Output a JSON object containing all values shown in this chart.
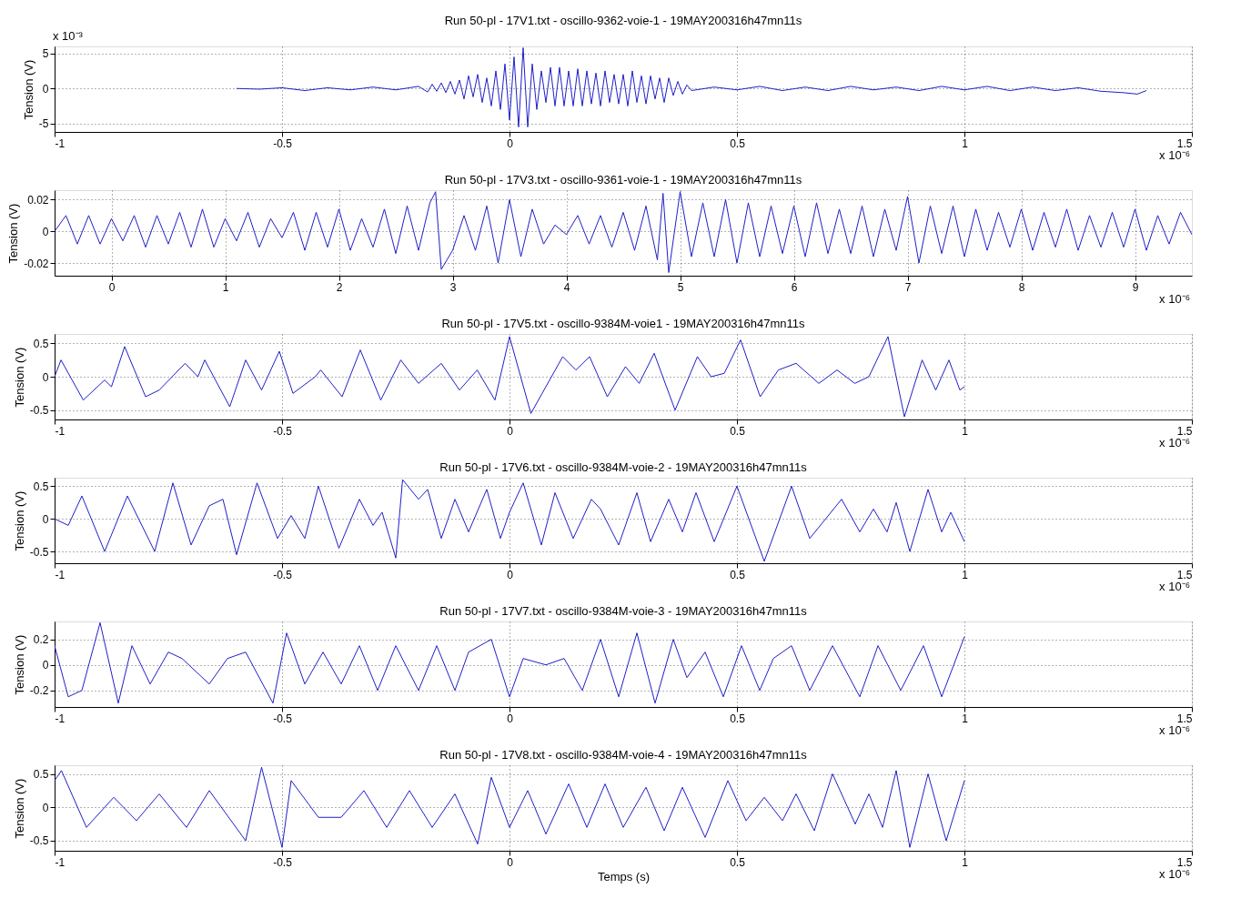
{
  "chart_data": [
    {
      "type": "line",
      "title": "Run 50-pl - 17V1.txt  - oscillo-9362-voie-1 - 19MAY200316h47mn11s",
      "ylabel": "Tension (V)",
      "annotations": [
        "x 10⁻³",
        "x 10⁻⁶"
      ],
      "xlim": [
        -1,
        1.5
      ],
      "xticks": [
        -1,
        -0.5,
        0,
        0.5,
        1,
        1.5
      ],
      "ylim": [
        -6.2,
        6
      ],
      "yticks": [
        -5,
        0,
        5
      ],
      "grid": true,
      "legend": false,
      "x": [
        -0.6,
        -0.55,
        -0.5,
        -0.45,
        -0.4,
        -0.35,
        -0.3,
        -0.25,
        -0.2,
        -0.18,
        -0.17,
        -0.16,
        -0.15,
        -0.14,
        -0.13,
        -0.12,
        -0.11,
        -0.1,
        -0.09,
        -0.08,
        -0.07,
        -0.06,
        -0.05,
        -0.04,
        -0.03,
        -0.02,
        -0.01,
        0,
        0.01,
        0.02,
        0.03,
        0.04,
        0.05,
        0.06,
        0.07,
        0.08,
        0.09,
        0.1,
        0.11,
        0.12,
        0.13,
        0.14,
        0.15,
        0.16,
        0.17,
        0.18,
        0.19,
        0.2,
        0.21,
        0.22,
        0.23,
        0.24,
        0.25,
        0.26,
        0.27,
        0.28,
        0.29,
        0.3,
        0.31,
        0.32,
        0.33,
        0.34,
        0.35,
        0.36,
        0.37,
        0.38,
        0.39,
        0.4,
        0.45,
        0.5,
        0.55,
        0.6,
        0.65,
        0.7,
        0.75,
        0.8,
        0.85,
        0.9,
        0.95,
        1.0,
        1.05,
        1.1,
        1.15,
        1.2,
        1.25,
        1.3,
        1.35,
        1.38,
        1.4
      ],
      "series": [
        {
          "color": "#1f1fc8",
          "values": [
            0,
            -0.1,
            0.1,
            -0.3,
            0.1,
            -0.2,
            0.2,
            -0.2,
            0.3,
            -0.5,
            0.6,
            -0.4,
            0.8,
            -0.6,
            1.0,
            -0.8,
            1.2,
            -1.5,
            1.8,
            -1.2,
            2.0,
            -2.0,
            1.5,
            -2.5,
            2.5,
            -3.0,
            3.5,
            -4.5,
            4.5,
            -5.5,
            5.8,
            -5.5,
            3.5,
            -3.0,
            2.5,
            -2.0,
            3.0,
            -2.5,
            3.0,
            -2.5,
            2.5,
            -2.5,
            2.8,
            -2.5,
            2.5,
            -2.2,
            2.2,
            -2.5,
            2.5,
            -2.0,
            2.0,
            -2.2,
            2.0,
            -2.5,
            2.5,
            -2.0,
            1.8,
            -2.2,
            1.8,
            -1.5,
            1.5,
            -2.0,
            1.5,
            -1.0,
            1.0,
            -0.8,
            0.5,
            -0.3,
            0.2,
            -0.2,
            0.3,
            -0.3,
            0.2,
            -0.3,
            0.3,
            -0.2,
            0.2,
            -0.3,
            0.3,
            -0.2,
            0.3,
            -0.3,
            0.2,
            -0.3,
            0.1,
            -0.4,
            -0.6,
            -0.8,
            -0.3
          ]
        }
      ]
    },
    {
      "type": "line",
      "title": "Run 50-pl - 17V3.txt  - oscillo-9361-voie-1 - 19MAY200316h47mn11s",
      "ylabel": "Tension (V)",
      "annotations": [
        "x 10⁻⁶"
      ],
      "xlim": [
        -0.5,
        9.5
      ],
      "xticks": [
        0,
        1,
        2,
        3,
        4,
        5,
        6,
        7,
        8,
        9
      ],
      "ylim": [
        -0.028,
        0.026
      ],
      "yticks": [
        -0.02,
        0,
        0.02
      ],
      "grid": true,
      "legend": false,
      "x": [
        -0.5,
        -0.4,
        -0.3,
        -0.2,
        -0.1,
        0,
        0.1,
        0.2,
        0.3,
        0.4,
        0.5,
        0.6,
        0.7,
        0.8,
        0.9,
        1.0,
        1.1,
        1.2,
        1.3,
        1.4,
        1.5,
        1.6,
        1.7,
        1.8,
        1.9,
        2.0,
        2.1,
        2.2,
        2.3,
        2.4,
        2.5,
        2.6,
        2.7,
        2.8,
        2.85,
        2.9,
        3.0,
        3.1,
        3.2,
        3.3,
        3.4,
        3.5,
        3.6,
        3.7,
        3.8,
        3.9,
        4.0,
        4.1,
        4.2,
        4.3,
        4.4,
        4.5,
        4.6,
        4.7,
        4.8,
        4.85,
        4.9,
        5.0,
        5.1,
        5.2,
        5.3,
        5.4,
        5.5,
        5.6,
        5.7,
        5.8,
        5.9,
        6.0,
        6.1,
        6.2,
        6.3,
        6.4,
        6.5,
        6.6,
        6.7,
        6.8,
        6.9,
        7.0,
        7.1,
        7.2,
        7.3,
        7.4,
        7.5,
        7.6,
        7.7,
        7.8,
        7.9,
        8.0,
        8.1,
        8.2,
        8.3,
        8.4,
        8.5,
        8.6,
        8.7,
        8.8,
        8.9,
        9.0,
        9.1,
        9.2,
        9.3,
        9.4,
        9.5
      ],
      "series": [
        {
          "color": "#1f1fc8",
          "values": [
            0,
            0.01,
            -0.008,
            0.01,
            -0.008,
            0.008,
            -0.006,
            0.01,
            -0.01,
            0.01,
            -0.008,
            0.012,
            -0.01,
            0.014,
            -0.01,
            0.008,
            -0.006,
            0.012,
            -0.01,
            0.008,
            -0.004,
            0.012,
            -0.012,
            0.012,
            -0.01,
            0.014,
            -0.012,
            0.008,
            -0.01,
            0.014,
            -0.014,
            0.016,
            -0.012,
            0.018,
            0.025,
            -0.024,
            -0.012,
            0.01,
            -0.012,
            0.016,
            -0.02,
            0.02,
            -0.016,
            0.014,
            -0.008,
            0.004,
            -0.002,
            0.01,
            -0.008,
            0.01,
            -0.01,
            0.012,
            -0.012,
            0.016,
            -0.018,
            0.024,
            -0.026,
            0.025,
            -0.016,
            0.018,
            -0.016,
            0.02,
            -0.02,
            0.018,
            -0.016,
            0.016,
            -0.014,
            0.016,
            -0.016,
            0.018,
            -0.014,
            0.014,
            -0.014,
            0.016,
            -0.016,
            0.014,
            -0.012,
            0.022,
            -0.02,
            0.016,
            -0.014,
            0.016,
            -0.016,
            0.014,
            -0.012,
            0.012,
            -0.01,
            0.014,
            -0.012,
            0.012,
            -0.01,
            0.014,
            -0.012,
            0.01,
            -0.01,
            0.012,
            -0.01,
            0.014,
            -0.012,
            0.01,
            -0.008,
            0.012,
            -0.002
          ]
        }
      ]
    },
    {
      "type": "line",
      "title": "Run 50-pl - 17V5.txt  - oscillo-9384M-voie1 - 19MAY200316h47mn11s",
      "ylabel": "Tension (V)",
      "annotations": [
        "x 10⁻⁶"
      ],
      "xlim": [
        -1,
        1.5
      ],
      "xticks": [
        -1,
        -0.5,
        0,
        0.5,
        1,
        1.5
      ],
      "ylim": [
        -0.64,
        0.64
      ],
      "yticks": [
        -0.5,
        0,
        0.5
      ],
      "grid": true,
      "legend": false,
      "x": [
        -1,
        -0.986,
        -0.937,
        -0.89,
        -0.875,
        -0.846,
        -0.8,
        -0.77,
        -0.713,
        -0.685,
        -0.67,
        -0.615,
        -0.58,
        -0.545,
        -0.506,
        -0.476,
        -0.427,
        -0.415,
        -0.368,
        -0.328,
        -0.283,
        -0.239,
        -0.2,
        -0.15,
        -0.11,
        -0.071,
        -0.032,
        0,
        0.047,
        0.117,
        0.146,
        0.176,
        0.215,
        0.255,
        0.285,
        0.318,
        0.364,
        0.413,
        0.443,
        0.472,
        0.508,
        0.551,
        0.591,
        0.63,
        0.68,
        0.72,
        0.759,
        0.79,
        0.832,
        0.868,
        0.907,
        0.937,
        0.966,
        0.99,
        1.0
      ],
      "series": [
        {
          "color": "#1f1fc8",
          "values": [
            0,
            0.25,
            -0.35,
            -0.05,
            -0.15,
            0.45,
            -0.3,
            -0.2,
            0.2,
            0,
            0.25,
            -0.45,
            0.25,
            -0.2,
            0.38,
            -0.25,
            0,
            0.1,
            -0.3,
            0.4,
            -0.35,
            0.25,
            -0.1,
            0.2,
            -0.2,
            0.1,
            -0.35,
            0.6,
            -0.55,
            0.3,
            0.1,
            0.3,
            -0.3,
            0.15,
            -0.1,
            0.35,
            -0.5,
            0.3,
            0,
            0.05,
            0.55,
            -0.3,
            0.1,
            0.2,
            -0.1,
            0.1,
            -0.1,
            0,
            0.6,
            -0.6,
            0.25,
            -0.2,
            0.25,
            -0.2,
            -0.15
          ]
        }
      ]
    },
    {
      "type": "line",
      "title": "Run 50-pl - 17V6.txt  - oscillo-9384M-voie-2 - 19MAY200316h47mn11s",
      "ylabel": "Tension (V)",
      "annotations": [
        "x 10⁻⁶"
      ],
      "xlim": [
        -1,
        1.5
      ],
      "xticks": [
        -1,
        -0.5,
        0,
        0.5,
        1,
        1.5
      ],
      "ylim": [
        -0.68,
        0.63
      ],
      "yticks": [
        -0.5,
        0,
        0.5
      ],
      "grid": true,
      "legend": false,
      "x": [
        -1,
        -0.97,
        -0.94,
        -0.89,
        -0.84,
        -0.78,
        -0.74,
        -0.7,
        -0.66,
        -0.63,
        -0.6,
        -0.555,
        -0.51,
        -0.48,
        -0.45,
        -0.42,
        -0.375,
        -0.33,
        -0.3,
        -0.28,
        -0.25,
        -0.235,
        -0.2,
        -0.18,
        -0.15,
        -0.12,
        -0.09,
        -0.05,
        -0.02,
        0,
        0.03,
        0.07,
        0.1,
        0.14,
        0.18,
        0.2,
        0.24,
        0.28,
        0.31,
        0.35,
        0.38,
        0.41,
        0.45,
        0.5,
        0.56,
        0.62,
        0.66,
        0.73,
        0.77,
        0.8,
        0.83,
        0.85,
        0.88,
        0.92,
        0.95,
        0.97,
        1.0
      ],
      "series": [
        {
          "color": "#1f1fc8",
          "values": [
            0,
            -0.1,
            0.35,
            -0.5,
            0.35,
            -0.5,
            0.55,
            -0.4,
            0.2,
            0.3,
            -0.55,
            0.55,
            -0.3,
            0.05,
            -0.3,
            0.5,
            -0.45,
            0.3,
            -0.1,
            0.1,
            -0.6,
            0.6,
            0.3,
            0.45,
            -0.3,
            0.3,
            -0.2,
            0.45,
            -0.3,
            0.1,
            0.55,
            -0.4,
            0.4,
            -0.3,
            0.3,
            0.15,
            -0.4,
            0.4,
            -0.35,
            0.3,
            -0.2,
            0.4,
            -0.35,
            0.5,
            -0.65,
            0.5,
            -0.3,
            0.3,
            -0.2,
            0.15,
            -0.2,
            0.25,
            -0.5,
            0.45,
            -0.2,
            0.1,
            -0.35
          ]
        }
      ]
    },
    {
      "type": "line",
      "title": "Run 50-pl - 17V7.txt  - oscillo-9384M-voie-3 - 19MAY200316h47mn11s",
      "ylabel": "Tension (V)",
      "annotations": [
        "x 10⁻⁶"
      ],
      "xlim": [
        -1,
        1.5
      ],
      "xticks": [
        -1,
        -0.5,
        0,
        0.5,
        1,
        1.5
      ],
      "ylim": [
        -0.33,
        0.34
      ],
      "yticks": [
        -0.2,
        0,
        0.2
      ],
      "grid": true,
      "legend": false,
      "x": [
        -1,
        -0.97,
        -0.94,
        -0.9,
        -0.86,
        -0.83,
        -0.79,
        -0.75,
        -0.72,
        -0.66,
        -0.62,
        -0.58,
        -0.52,
        -0.49,
        -0.45,
        -0.41,
        -0.37,
        -0.33,
        -0.29,
        -0.25,
        -0.2,
        -0.16,
        -0.12,
        -0.09,
        -0.04,
        0,
        0.03,
        0.08,
        0.12,
        0.16,
        0.2,
        0.24,
        0.28,
        0.32,
        0.36,
        0.39,
        0.43,
        0.47,
        0.51,
        0.55,
        0.58,
        0.62,
        0.66,
        0.71,
        0.77,
        0.81,
        0.86,
        0.91,
        0.95,
        1.0
      ],
      "series": [
        {
          "color": "#1f1fc8",
          "values": [
            0.15,
            -0.25,
            -0.2,
            0.33,
            -0.3,
            0.15,
            -0.15,
            0.1,
            0.05,
            -0.15,
            0.05,
            0.1,
            -0.3,
            0.25,
            -0.15,
            0.1,
            -0.15,
            0.15,
            -0.2,
            0.15,
            -0.2,
            0.15,
            -0.2,
            0.1,
            0.2,
            -0.25,
            0.05,
            0,
            0.05,
            -0.2,
            0.2,
            -0.25,
            0.25,
            -0.3,
            0.2,
            -0.1,
            0.1,
            -0.25,
            0.15,
            -0.2,
            0.05,
            0.15,
            -0.2,
            0.15,
            -0.25,
            0.15,
            -0.2,
            0.15,
            -0.25,
            0.22
          ]
        }
      ]
    },
    {
      "type": "line",
      "title": "Run 50-pl - 17V8.txt  - oscillo-9384M-voie-4 - 19MAY200316h47mn11s",
      "xlabel": "Temps (s)",
      "ylabel": "Tension (V)",
      "annotations": [
        "x 10⁻⁶"
      ],
      "xlim": [
        -1,
        1.5
      ],
      "xticks": [
        -1,
        -0.5,
        0,
        0.5,
        1,
        1.5
      ],
      "ylim": [
        -0.65,
        0.63
      ],
      "yticks": [
        -0.5,
        0,
        0.5
      ],
      "grid": true,
      "legend": false,
      "x": [
        -1,
        -0.985,
        -0.93,
        -0.87,
        -0.82,
        -0.77,
        -0.71,
        -0.66,
        -0.58,
        -0.545,
        -0.5,
        -0.48,
        -0.42,
        -0.37,
        -0.32,
        -0.27,
        -0.22,
        -0.17,
        -0.12,
        -0.07,
        -0.04,
        0,
        0.04,
        0.08,
        0.13,
        0.17,
        0.21,
        0.25,
        0.3,
        0.34,
        0.38,
        0.43,
        0.48,
        0.52,
        0.56,
        0.6,
        0.63,
        0.67,
        0.71,
        0.76,
        0.79,
        0.82,
        0.85,
        0.88,
        0.92,
        0.96,
        1.0
      ],
      "series": [
        {
          "color": "#1f1fc8",
          "values": [
            0.4,
            0.55,
            -0.3,
            0.15,
            -0.2,
            0.2,
            -0.3,
            0.25,
            -0.5,
            0.6,
            -0.6,
            0.4,
            -0.15,
            -0.15,
            0.25,
            -0.3,
            0.25,
            -0.3,
            0.2,
            -0.55,
            0.45,
            -0.3,
            0.25,
            -0.4,
            0.35,
            -0.3,
            0.35,
            -0.3,
            0.3,
            -0.35,
            0.3,
            -0.45,
            0.4,
            -0.2,
            0.15,
            -0.2,
            0.2,
            -0.35,
            0.5,
            -0.25,
            0.2,
            -0.3,
            0.55,
            -0.6,
            0.5,
            -0.5,
            0.4
          ]
        }
      ]
    }
  ]
}
